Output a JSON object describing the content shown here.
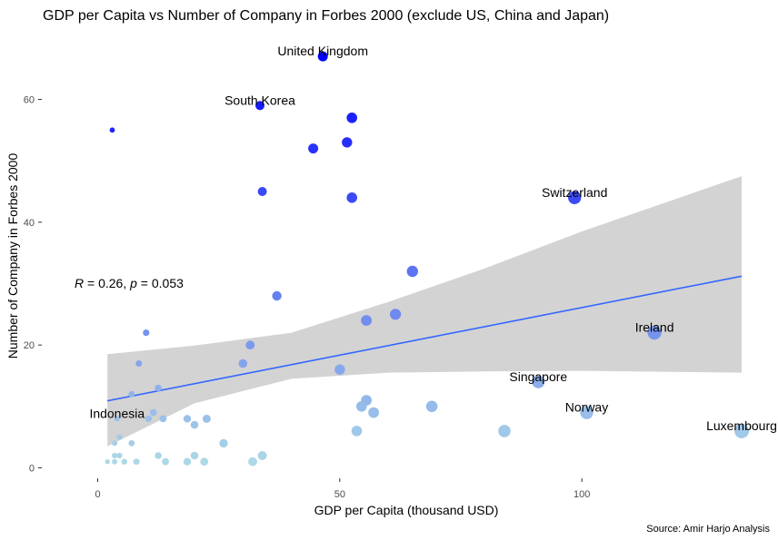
{
  "chart_data": {
    "type": "scatter",
    "title": "GDP per Capita vs Number of Company in Forbes 2000 (exclude US, China and Japan)",
    "xlabel": "GDP per Capita (thousand USD)",
    "ylabel": "Number of Company in Forbes 2000",
    "caption": "Source: Amir Harjo Analysis",
    "stat_label": {
      "r_sym": "R",
      "r_val": " = 0.26, ",
      "p_sym": "p",
      "p_val": " = 0.053"
    },
    "xlim": [
      -12,
      135
    ],
    "ylim": [
      -2,
      68
    ],
    "xticks": [
      0,
      50,
      100
    ],
    "yticks": [
      0,
      20,
      40,
      60
    ],
    "grid": false,
    "legend": "none",
    "color_scale": {
      "low": "#add8e6",
      "high": "#0000ff",
      "encodes": "y"
    },
    "regression": {
      "type": "linear",
      "intercept": 10.6,
      "slope": 0.155,
      "x_range": [
        2,
        133
      ],
      "ci_band": [
        [
          2,
          3.5,
          18.5
        ],
        [
          20,
          10.5,
          19.9
        ],
        [
          40,
          14.5,
          22.0
        ],
        [
          60,
          15.5,
          27.0
        ],
        [
          80,
          15.7,
          32.5
        ],
        [
          100,
          15.8,
          38.5
        ],
        [
          133,
          15.5,
          47.5
        ]
      ],
      "line_color": "#3366ff",
      "band_color": "#d3d3d3"
    },
    "points": [
      {
        "x": 46.5,
        "y": 67,
        "label": "United Kingdom"
      },
      {
        "x": 33.5,
        "y": 59,
        "label": "South Korea"
      },
      {
        "x": 52.5,
        "y": 57
      },
      {
        "x": 44.5,
        "y": 52
      },
      {
        "x": 51.5,
        "y": 53
      },
      {
        "x": 34,
        "y": 45
      },
      {
        "x": 52.5,
        "y": 44
      },
      {
        "x": 98.5,
        "y": 44,
        "label": "Switzerland"
      },
      {
        "x": 3,
        "y": 55
      },
      {
        "x": 65,
        "y": 32
      },
      {
        "x": 37,
        "y": 28
      },
      {
        "x": 55.5,
        "y": 24
      },
      {
        "x": 61.5,
        "y": 25
      },
      {
        "x": 10,
        "y": 22
      },
      {
        "x": 31.5,
        "y": 20
      },
      {
        "x": 30,
        "y": 17
      },
      {
        "x": 8.5,
        "y": 17
      },
      {
        "x": 50,
        "y": 16
      },
      {
        "x": 115,
        "y": 22,
        "label": "Ireland"
      },
      {
        "x": 91,
        "y": 14,
        "label": "Singapore"
      },
      {
        "x": 12.5,
        "y": 13
      },
      {
        "x": 7,
        "y": 12
      },
      {
        "x": 55.5,
        "y": 11
      },
      {
        "x": 54.5,
        "y": 10
      },
      {
        "x": 57,
        "y": 9
      },
      {
        "x": 69,
        "y": 10
      },
      {
        "x": 101,
        "y": 9,
        "label": "Norway"
      },
      {
        "x": 11.5,
        "y": 9
      },
      {
        "x": 4,
        "y": 8,
        "label": "Indonesia"
      },
      {
        "x": 10.5,
        "y": 8
      },
      {
        "x": 13.5,
        "y": 8
      },
      {
        "x": 18.5,
        "y": 8
      },
      {
        "x": 22.5,
        "y": 8
      },
      {
        "x": 20,
        "y": 7
      },
      {
        "x": 53.5,
        "y": 6
      },
      {
        "x": 84,
        "y": 6
      },
      {
        "x": 133,
        "y": 6,
        "label": "Luxembourg"
      },
      {
        "x": 4.5,
        "y": 5
      },
      {
        "x": 3.5,
        "y": 4
      },
      {
        "x": 7,
        "y": 4
      },
      {
        "x": 26,
        "y": 4
      },
      {
        "x": 3.5,
        "y": 2
      },
      {
        "x": 4.5,
        "y": 2
      },
      {
        "x": 12.5,
        "y": 2
      },
      {
        "x": 20,
        "y": 2
      },
      {
        "x": 34,
        "y": 2
      },
      {
        "x": 2,
        "y": 1
      },
      {
        "x": 3.5,
        "y": 1
      },
      {
        "x": 5.5,
        "y": 1
      },
      {
        "x": 8,
        "y": 1
      },
      {
        "x": 14,
        "y": 1
      },
      {
        "x": 18.5,
        "y": 1
      },
      {
        "x": 22,
        "y": 1
      },
      {
        "x": 32,
        "y": 1
      }
    ]
  }
}
